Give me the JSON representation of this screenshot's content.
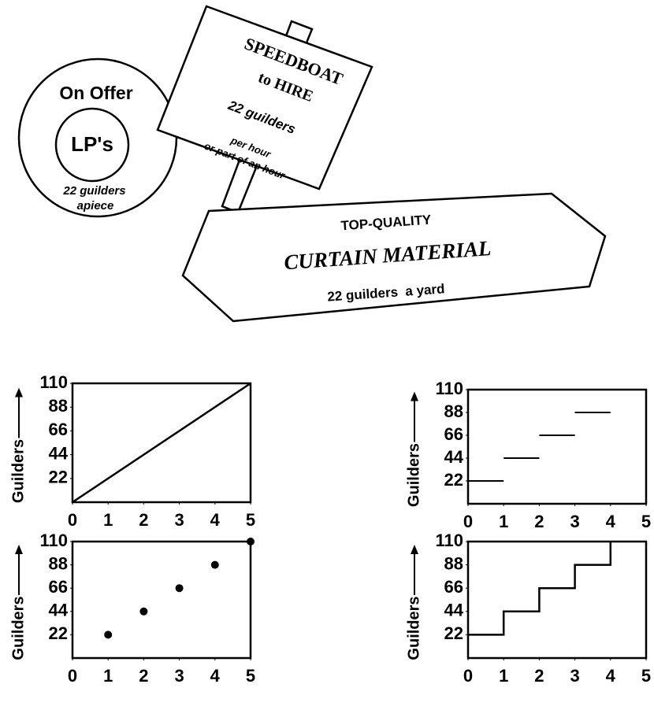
{
  "signs": {
    "offer": {
      "title": "On Offer",
      "item": "LP's",
      "price": "22 guilders",
      "unit": "apiece"
    },
    "speedboat": {
      "title": "SPEEDBOAT",
      "subtitle": "to HIRE",
      "price": "22 guilders",
      "unit": "per hour",
      "note": "or part of an hour"
    },
    "curtain": {
      "title": "TOP-QUALITY",
      "subtitle": "CURTAIN MATERIAL",
      "price": "22 guilders  a yard"
    }
  },
  "chart_data": [
    {
      "type": "line",
      "ylabel": "Guilders",
      "x": [
        0,
        5
      ],
      "values": [
        0,
        110
      ],
      "xlim": [
        0,
        5
      ],
      "ylim": [
        0,
        110
      ],
      "xticks": [
        0,
        1,
        2,
        3,
        4,
        5
      ],
      "yticks": [
        22,
        44,
        66,
        88,
        110
      ],
      "color": "#000000"
    },
    {
      "type": "segments",
      "ylabel": "Guilders",
      "x": [
        0,
        1,
        2,
        3
      ],
      "x_end": [
        1,
        2,
        3,
        4
      ],
      "values": [
        22,
        44,
        66,
        88
      ],
      "xlim": [
        0,
        5
      ],
      "ylim": [
        0,
        110
      ],
      "xticks": [
        0,
        1,
        2,
        3,
        4,
        5
      ],
      "yticks": [
        22,
        44,
        66,
        88,
        110
      ],
      "color": "#000000"
    },
    {
      "type": "scatter",
      "ylabel": "Guilders",
      "x": [
        1,
        2,
        3,
        4,
        5
      ],
      "values": [
        22,
        44,
        66,
        88,
        110
      ],
      "xlim": [
        0,
        5
      ],
      "ylim": [
        0,
        110
      ],
      "xticks": [
        0,
        1,
        2,
        3,
        4,
        5
      ],
      "yticks": [
        22,
        44,
        66,
        88,
        110
      ],
      "color": "#000000"
    },
    {
      "type": "line",
      "ylabel": "Guilders",
      "x": [
        0,
        1,
        1,
        2,
        2,
        3,
        3,
        4,
        4
      ],
      "values": [
        22,
        22,
        44,
        44,
        66,
        66,
        88,
        88,
        110
      ],
      "xlim": [
        0,
        5
      ],
      "ylim": [
        0,
        110
      ],
      "xticks": [
        0,
        1,
        2,
        3,
        4,
        5
      ],
      "yticks": [
        22,
        44,
        66,
        88,
        110
      ],
      "color": "#000000"
    }
  ]
}
